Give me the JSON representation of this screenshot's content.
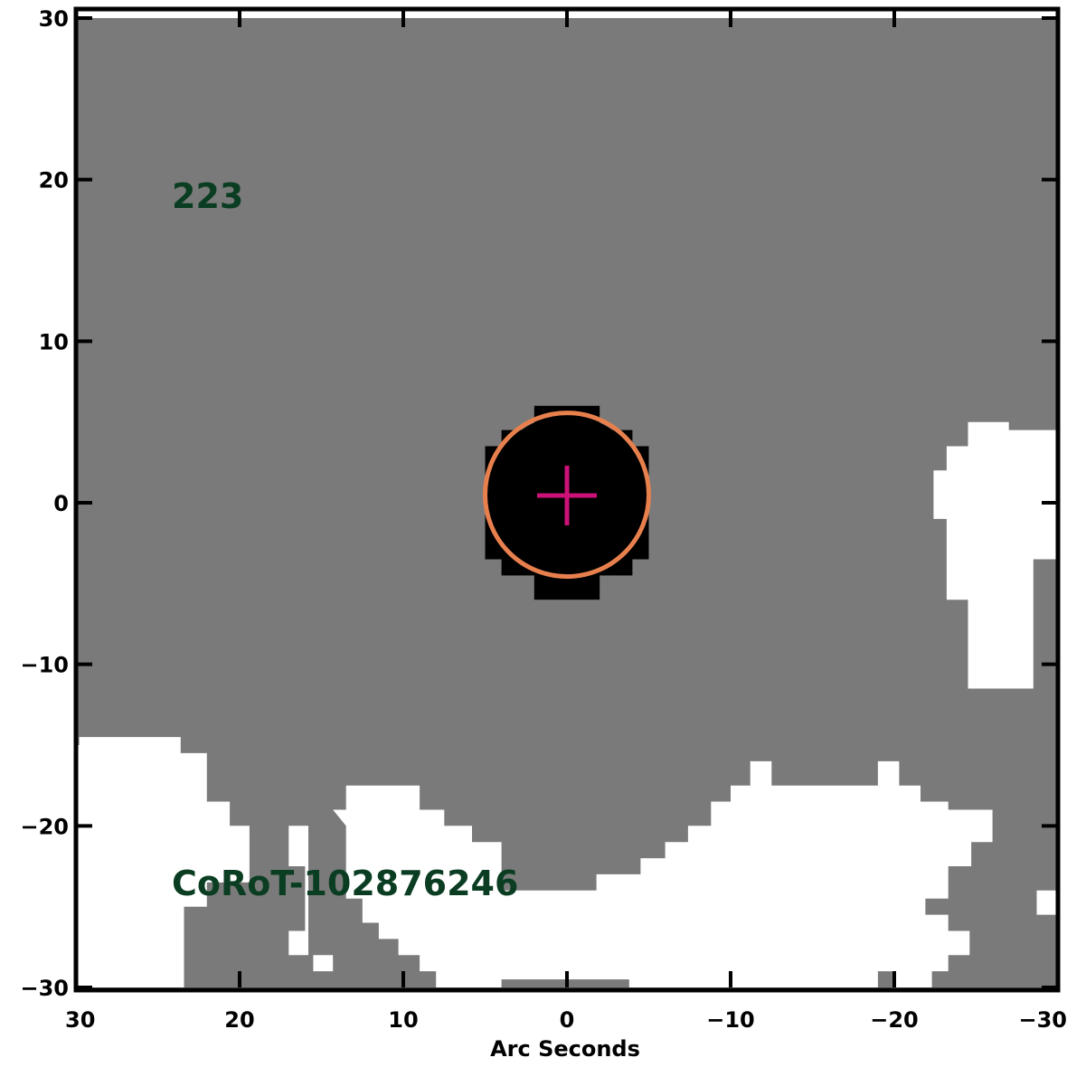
{
  "chart_data": {
    "type": "heatmap",
    "xlabel": "Arc Seconds",
    "ylabel": "",
    "xlim": [
      30,
      -30
    ],
    "ylim": [
      -30,
      30
    ],
    "x_ticks": [
      30,
      20,
      10,
      0,
      -10,
      -20,
      -30
    ],
    "y_ticks": [
      30,
      20,
      10,
      0,
      -10,
      -20,
      -30
    ],
    "x_tick_labels": [
      "30",
      "20",
      "10",
      "0",
      "−10",
      "−20",
      "−30"
    ],
    "y_tick_labels": [
      "30",
      "20",
      "10",
      "0",
      "−10",
      "−20",
      "−30"
    ],
    "grid": false,
    "colors": {
      "background": "#7a7a7a",
      "white_region": "#ffffff",
      "source": "#000000",
      "aperture": "#e8804e",
      "target_marker": "#cc1177",
      "annotation": "#0a3d22"
    },
    "annotations": {
      "count": "223",
      "target_id": "CoRoT-102876246"
    },
    "target": {
      "x": 0,
      "y": 0
    },
    "aperture_circle": {
      "center": [
        0,
        0.5
      ],
      "radius": 5
    },
    "source_blob": [
      {
        "x": [
          2,
          -2
        ],
        "y": [
          -6,
          6
        ]
      },
      {
        "x": [
          4,
          -4
        ],
        "y": [
          -4.5,
          4.5
        ]
      },
      {
        "x": [
          5,
          -5
        ],
        "y": [
          -3.5,
          3.5
        ]
      }
    ],
    "white_regions": [
      {
        "name": "right-edge-region",
        "points": [
          [
            -24.5,
            -11.5
          ],
          [
            -28.5,
            -11.5
          ],
          [
            -28.5,
            -3.5
          ],
          [
            -29.9,
            -3.5
          ],
          [
            -29.9,
            4.5
          ],
          [
            -27,
            4.5
          ],
          [
            -27,
            5
          ],
          [
            -24.5,
            5
          ],
          [
            -24.5,
            3.5
          ],
          [
            -23.2,
            3.5
          ],
          [
            -23.2,
            2
          ],
          [
            -22.4,
            2
          ],
          [
            -22.4,
            -1
          ],
          [
            -23.2,
            -1
          ],
          [
            -23.2,
            -6
          ],
          [
            -24.5,
            -6
          ]
        ]
      },
      {
        "name": "bottom-left-region",
        "points": [
          [
            30.5,
            -15
          ],
          [
            29.8,
            -15
          ],
          [
            29.8,
            -14.5
          ],
          [
            23.6,
            -14.5
          ],
          [
            23.6,
            -15.5
          ],
          [
            22,
            -15.5
          ],
          [
            22,
            -18.5
          ],
          [
            20.6,
            -18.5
          ],
          [
            20.6,
            -20
          ],
          [
            19.4,
            -20
          ],
          [
            19.4,
            -23.5
          ],
          [
            22,
            -23.5
          ],
          [
            22,
            -25
          ],
          [
            23.4,
            -25
          ],
          [
            23.4,
            -30
          ],
          [
            30.5,
            -30
          ]
        ]
      },
      {
        "name": "bottom-main-region",
        "points": [
          [
            14.3,
            -19
          ],
          [
            13.5,
            -19
          ],
          [
            13.5,
            -17.5
          ],
          [
            9,
            -17.5
          ],
          [
            9,
            -19
          ],
          [
            7.5,
            -19
          ],
          [
            7.5,
            -20
          ],
          [
            5.8,
            -20
          ],
          [
            5.8,
            -21
          ],
          [
            4,
            -21
          ],
          [
            4,
            -24
          ],
          [
            -1.8,
            -24
          ],
          [
            -1.8,
            -23
          ],
          [
            -4.5,
            -23
          ],
          [
            -4.5,
            -22
          ],
          [
            -6,
            -22
          ],
          [
            -6,
            -21
          ],
          [
            -7.4,
            -21
          ],
          [
            -7.4,
            -20
          ],
          [
            -8.8,
            -20
          ],
          [
            -8.8,
            -18.5
          ],
          [
            -10,
            -18.5
          ],
          [
            -10,
            -17.5
          ],
          [
            -11.2,
            -17.5
          ],
          [
            -11.2,
            -16
          ],
          [
            -12.5,
            -16
          ],
          [
            -12.5,
            -17.5
          ],
          [
            -19,
            -17.5
          ],
          [
            -19,
            -16
          ],
          [
            -20.3,
            -16
          ],
          [
            -20.3,
            -17.5
          ],
          [
            -21.6,
            -17.5
          ],
          [
            -21.6,
            -18.5
          ],
          [
            -23.3,
            -18.5
          ],
          [
            -23.3,
            -19
          ],
          [
            -26,
            -19
          ],
          [
            -26,
            -21
          ],
          [
            -24.7,
            -21
          ],
          [
            -24.7,
            -22.5
          ],
          [
            -23.3,
            -22.5
          ],
          [
            -23.3,
            -24.5
          ],
          [
            -21.9,
            -24.5
          ],
          [
            -21.9,
            -25.5
          ],
          [
            -23.3,
            -25.5
          ],
          [
            -23.3,
            -26.5
          ],
          [
            -24.6,
            -26.5
          ],
          [
            -24.6,
            -28
          ],
          [
            -23.3,
            -28
          ],
          [
            -23.3,
            -29
          ],
          [
            -22.3,
            -29
          ],
          [
            -22.3,
            -30
          ],
          [
            -20,
            -30
          ],
          [
            -20,
            -29
          ],
          [
            -19,
            -29
          ],
          [
            -19,
            -30
          ],
          [
            -3.8,
            -30
          ],
          [
            -3.8,
            -29.5
          ],
          [
            4,
            -29.5
          ],
          [
            4,
            -30
          ],
          [
            8,
            -30
          ],
          [
            8,
            -29
          ],
          [
            9,
            -29
          ],
          [
            9,
            -28
          ],
          [
            10.3,
            -28
          ],
          [
            10.3,
            -27
          ],
          [
            11.5,
            -27
          ],
          [
            11.5,
            -26
          ],
          [
            12.5,
            -26
          ],
          [
            12.5,
            -24.5
          ],
          [
            13.5,
            -24.5
          ],
          [
            13.5,
            -20
          ]
        ]
      },
      {
        "name": "left-post-region",
        "points": [
          [
            17,
            -20
          ],
          [
            17,
            -22.5
          ],
          [
            16,
            -22.5
          ],
          [
            16,
            -26.5
          ],
          [
            17,
            -26.5
          ],
          [
            17,
            -28
          ],
          [
            15.8,
            -28
          ],
          [
            15.8,
            -20
          ]
        ]
      },
      {
        "name": "small-patch-region",
        "points": [
          [
            15.5,
            -28
          ],
          [
            14.3,
            -28
          ],
          [
            14.3,
            -29
          ],
          [
            15.5,
            -29
          ]
        ]
      },
      {
        "name": "corner-patch-region",
        "points": [
          [
            -28.7,
            -24
          ],
          [
            -30,
            -24
          ],
          [
            -30,
            -25.5
          ],
          [
            -28.7,
            -25.5
          ]
        ]
      }
    ]
  }
}
